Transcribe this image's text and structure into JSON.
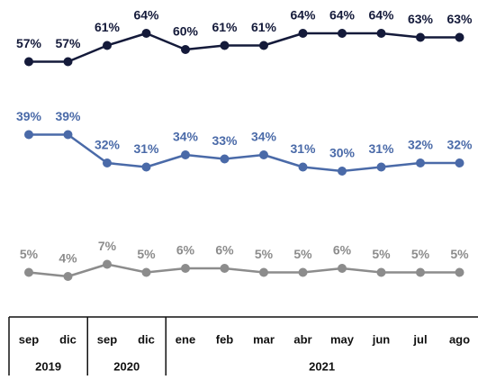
{
  "chart_data": {
    "type": "line",
    "categories": [
      "sep",
      "dic",
      "sep",
      "dic",
      "ene",
      "feb",
      "mar",
      "abr",
      "may",
      "jun",
      "jul",
      "ago"
    ],
    "groups": [
      {
        "label": "2019",
        "size": 2
      },
      {
        "label": "2020",
        "size": 2
      },
      {
        "label": "2021",
        "size": 8
      }
    ],
    "series": [
      {
        "color": "#141a3a",
        "values": [
          57,
          57,
          61,
          64,
          60,
          61,
          61,
          64,
          64,
          64,
          63,
          63
        ],
        "value_labels": [
          "57%",
          "57%",
          "61%",
          "64%",
          "60%",
          "61%",
          "61%",
          "64%",
          "64%",
          "64%",
          "63%",
          "63%"
        ]
      },
      {
        "color": "#4a6aa8",
        "values": [
          39,
          39,
          32,
          31,
          34,
          33,
          34,
          31,
          30,
          31,
          32,
          32
        ],
        "value_labels": [
          "39%",
          "39%",
          "32%",
          "31%",
          "34%",
          "33%",
          "34%",
          "31%",
          "30%",
          "31%",
          "32%",
          "32%"
        ]
      },
      {
        "color": "#8c8c8c",
        "values": [
          5,
          4,
          7,
          5,
          6,
          6,
          5,
          5,
          6,
          5,
          5,
          5
        ],
        "value_labels": [
          "5%",
          "4%",
          "7%",
          "5%",
          "6%",
          "6%",
          "5%",
          "5%",
          "6%",
          "5%",
          "5%",
          "5%"
        ]
      }
    ]
  }
}
